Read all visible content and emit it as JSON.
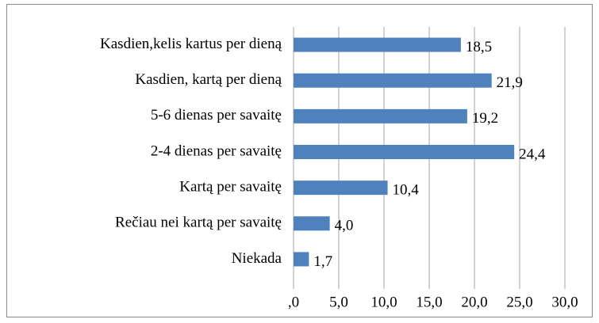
{
  "chart_data": {
    "type": "bar",
    "orientation": "horizontal",
    "categories": [
      "Kasdien,kelis kartus per dieną",
      "Kasdien, kartą per dieną",
      "5-6 dienas per savaitę",
      "2-4 dienas per savaitę",
      "Kartą per savaitę",
      "Rečiau nei kartą per savaitę",
      "Niekada"
    ],
    "values": [
      18.5,
      21.9,
      19.2,
      24.4,
      10.4,
      4.0,
      1.7
    ],
    "value_labels": [
      "18,5",
      "21,9",
      "19,2",
      "24,4",
      "10,4",
      "4,0",
      "1,7"
    ],
    "color": "#4f81bd",
    "xlim": [
      0,
      30
    ],
    "xticks": [
      {
        "value": 0,
        "label": ",0"
      },
      {
        "value": 5,
        "label": "5,0"
      },
      {
        "value": 10,
        "label": "10,0"
      },
      {
        "value": 15,
        "label": "15,0"
      },
      {
        "value": 20,
        "label": "20,0"
      },
      {
        "value": 25,
        "label": "25,0"
      },
      {
        "value": 30,
        "label": "30,0"
      }
    ],
    "grid": true
  }
}
